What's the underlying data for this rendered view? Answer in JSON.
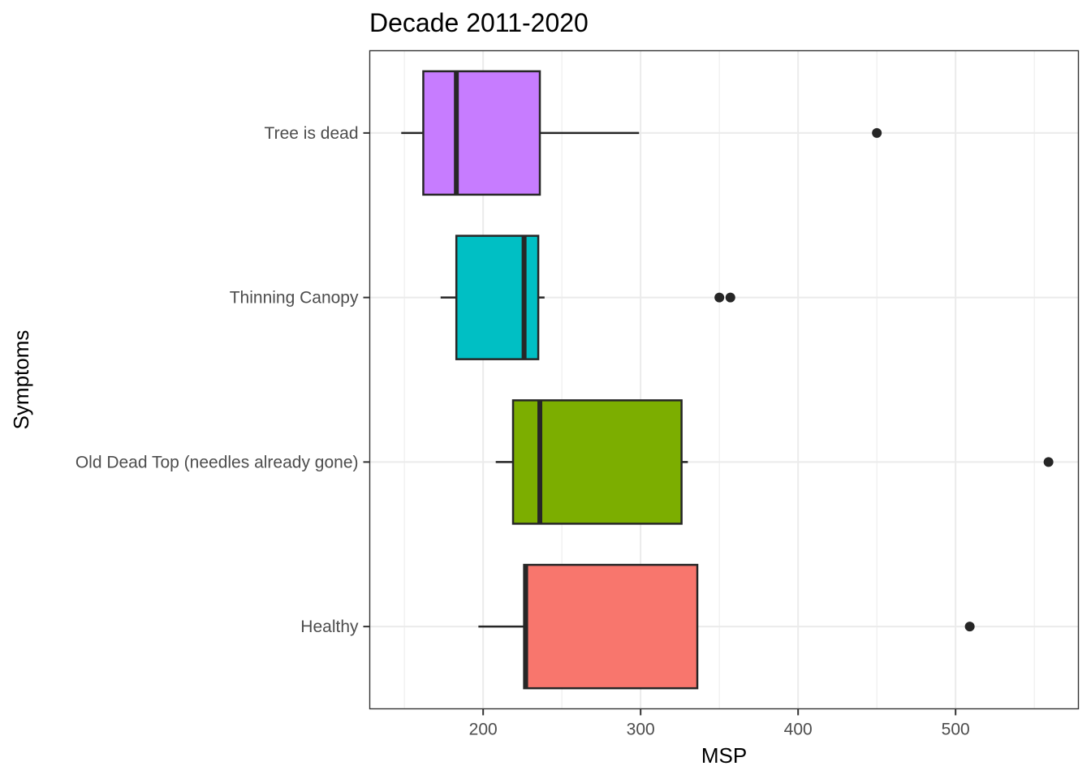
{
  "chart_data": {
    "type": "boxplot",
    "orientation": "horizontal",
    "title": "Decade 2011-2020",
    "xlabel": "MSP",
    "ylabel": "Symptoms",
    "xlim": [
      128,
      578
    ],
    "xticks": [
      200,
      300,
      400,
      500
    ],
    "grid": true,
    "legend": "none",
    "categories": [
      "Healthy",
      "Old Dead Top (needles already gone)",
      "Thinning Canopy",
      "Tree is dead"
    ],
    "boxes": [
      {
        "category": "Healthy",
        "color": "#F8766D",
        "whisker_low": 197,
        "q1": 226,
        "median": 227,
        "q3": 336,
        "whisker_high": 336,
        "outliers": [
          509
        ]
      },
      {
        "category": "Old Dead Top (needles already gone)",
        "color": "#7CAE00",
        "whisker_low": 208,
        "q1": 219,
        "median": 236,
        "q3": 326,
        "whisker_high": 330,
        "outliers": [
          559
        ]
      },
      {
        "category": "Thinning Canopy",
        "color": "#00BFC4",
        "whisker_low": 173,
        "q1": 183,
        "median": 226,
        "q3": 235,
        "whisker_high": 239,
        "outliers": [
          350,
          357
        ]
      },
      {
        "category": "Tree is dead",
        "color": "#C77CFF",
        "whisker_low": 148,
        "q1": 162,
        "median": 183,
        "q3": 236,
        "whisker_high": 299,
        "outliers": [
          450
        ]
      }
    ]
  }
}
